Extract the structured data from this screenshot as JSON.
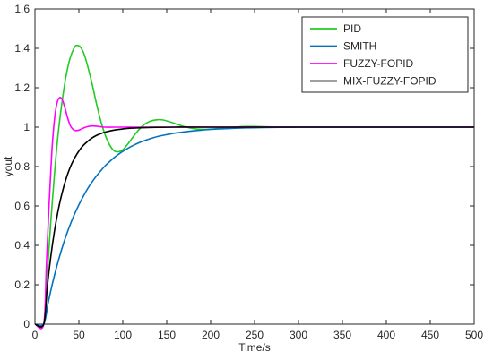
{
  "chart_data": {
    "type": "line",
    "xlabel": "Time/s",
    "ylabel": "yout",
    "xlim": [
      0,
      500
    ],
    "ylim": [
      0,
      1.6
    ],
    "xticks": [
      0,
      50,
      100,
      150,
      200,
      250,
      300,
      350,
      400,
      450,
      500
    ],
    "yticks": [
      0,
      0.2,
      0.4,
      0.6,
      0.8,
      1,
      1.2,
      1.4,
      1.6
    ],
    "grid": false,
    "legend_position": "top-right",
    "series": [
      {
        "name": "PID",
        "color": "#22cc22",
        "x": [
          0,
          10,
          14,
          18,
          22,
          26,
          30,
          35,
          40,
          45,
          48,
          52,
          56,
          60,
          65,
          70,
          75,
          80,
          85,
          90,
          95,
          100,
          105,
          110,
          115,
          120,
          125,
          130,
          135,
          140,
          145,
          150,
          155,
          160,
          170,
          180,
          190,
          200,
          210,
          220,
          230,
          240,
          250,
          260,
          280,
          300,
          350,
          400,
          450,
          500
        ],
        "y": [
          0,
          0,
          0.25,
          0.52,
          0.75,
          0.95,
          1.1,
          1.25,
          1.35,
          1.405,
          1.415,
          1.405,
          1.37,
          1.31,
          1.22,
          1.12,
          1.03,
          0.96,
          0.91,
          0.88,
          0.875,
          0.885,
          0.91,
          0.94,
          0.97,
          0.995,
          1.015,
          1.028,
          1.035,
          1.038,
          1.037,
          1.032,
          1.025,
          1.017,
          1.003,
          0.993,
          0.989,
          0.99,
          0.994,
          0.998,
          1.001,
          1.003,
          1.003,
          1.002,
          1.0,
          1.0,
          1.0,
          1.0,
          1.0,
          1.0
        ]
      },
      {
        "name": "SMITH",
        "color": "#0072bd",
        "x": [
          0,
          10,
          15,
          20,
          25,
          30,
          35,
          40,
          45,
          50,
          55,
          60,
          65,
          70,
          75,
          80,
          85,
          90,
          95,
          100,
          110,
          120,
          130,
          140,
          150,
          160,
          170,
          180,
          190,
          200,
          220,
          240,
          260,
          280,
          300,
          350,
          400,
          450,
          500
        ],
        "y": [
          0,
          0,
          0.108,
          0.208,
          0.296,
          0.374,
          0.443,
          0.504,
          0.558,
          0.606,
          0.649,
          0.688,
          0.722,
          0.752,
          0.779,
          0.804,
          0.825,
          0.845,
          0.862,
          0.877,
          0.903,
          0.924,
          0.94,
          0.953,
          0.962,
          0.97,
          0.976,
          0.981,
          0.985,
          0.989,
          0.993,
          0.996,
          0.998,
          0.999,
          1.0,
          1.0,
          1.0,
          1.0,
          1.0
        ]
      },
      {
        "name": "FUZZY-FOPID",
        "color": "#ff00ff",
        "x": [
          0,
          10,
          13,
          16,
          19,
          22,
          25,
          28,
          31,
          34,
          37,
          40,
          43,
          46,
          50,
          55,
          60,
          65,
          70,
          75,
          80,
          90,
          100,
          120,
          150,
          200,
          300,
          400,
          500
        ],
        "y": [
          0,
          0,
          0.3,
          0.6,
          0.86,
          1.03,
          1.12,
          1.15,
          1.14,
          1.1,
          1.05,
          1.01,
          0.99,
          0.983,
          0.985,
          0.995,
          1.003,
          1.006,
          1.005,
          1.002,
          1.0,
          1.0,
          1.0,
          1.0,
          1.0,
          1.0,
          1.0,
          1.0,
          1.0
        ]
      },
      {
        "name": "MIX-FUZZY-FOPID",
        "color": "#000000",
        "x": [
          0,
          10,
          14,
          18,
          22,
          26,
          30,
          35,
          40,
          45,
          50,
          55,
          60,
          65,
          70,
          75,
          80,
          90,
          100,
          110,
          120,
          140,
          160,
          200,
          300,
          400,
          500
        ],
        "y": [
          0,
          0,
          0.189,
          0.342,
          0.467,
          0.568,
          0.65,
          0.732,
          0.795,
          0.842,
          0.879,
          0.907,
          0.928,
          0.945,
          0.958,
          0.967,
          0.975,
          0.985,
          0.991,
          0.995,
          0.997,
          0.999,
          1.0,
          1.0,
          1.0,
          1.0,
          1.0
        ]
      }
    ]
  }
}
